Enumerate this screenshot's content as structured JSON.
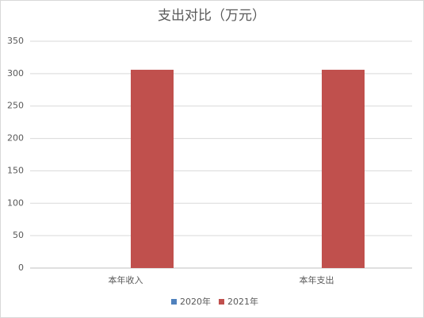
{
  "chart_data": {
    "type": "bar",
    "title": "支出对比（万元）",
    "categories": [
      "本年收入",
      "本年支出"
    ],
    "series": [
      {
        "name": "2020年",
        "color": "#4f81bd",
        "values": [
          0,
          0
        ]
      },
      {
        "name": "2021年",
        "color": "#c0504d",
        "values": [
          306,
          306
        ]
      }
    ],
    "ylim": [
      0,
      350
    ],
    "yticks": [
      0,
      50,
      100,
      150,
      200,
      250,
      300,
      350
    ],
    "grid": true,
    "legend": "bottom"
  }
}
